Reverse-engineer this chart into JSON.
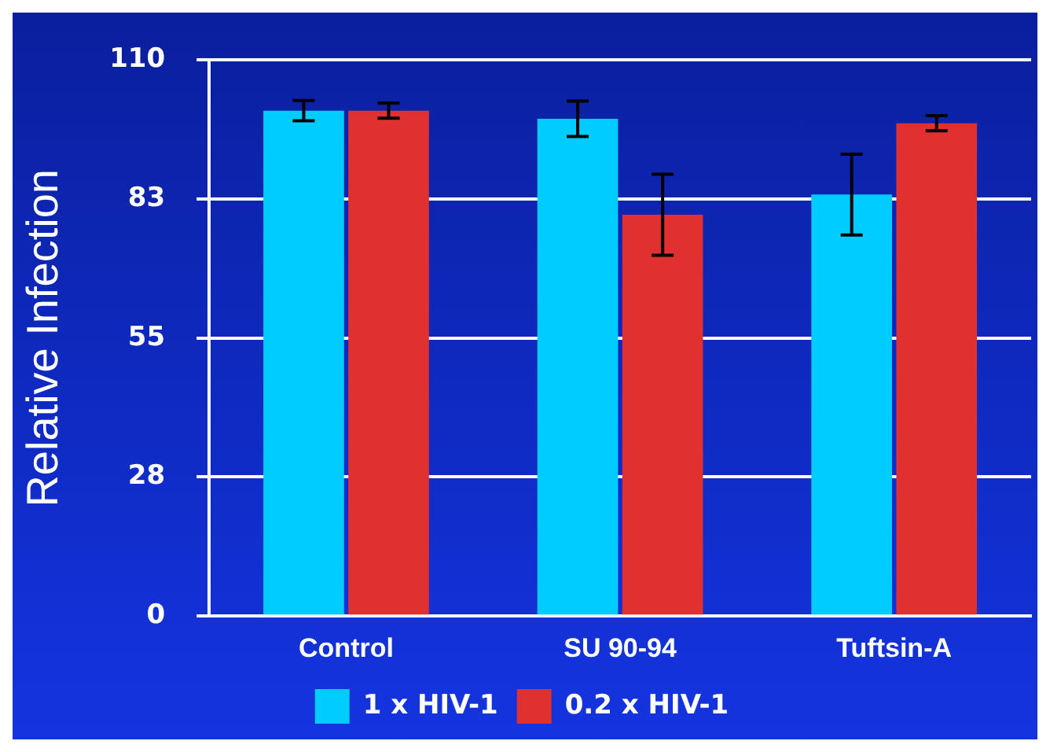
{
  "chart_data": {
    "type": "bar",
    "ylabel": "Relative Infection",
    "categories": [
      "Control",
      "SU 90-94",
      "Tuftsin-A"
    ],
    "series": [
      {
        "name": "1 x HIV-1",
        "color": "#00ccff",
        "values": [
          100,
          98.4,
          83.4
        ],
        "errors": [
          2,
          3.5,
          8
        ]
      },
      {
        "name": "0.2 x HIV-1",
        "color": "#e03030",
        "values": [
          100,
          79.4,
          97.5
        ],
        "errors": [
          1.5,
          8,
          1.5
        ]
      }
    ],
    "ylim": [
      0,
      110
    ],
    "yticks": [
      0,
      {
        "value": 27.5,
        "label": "28"
      },
      55,
      {
        "value": 82.5,
        "label": "83"
      },
      110
    ],
    "grid": "y",
    "legend": "bottom"
  }
}
